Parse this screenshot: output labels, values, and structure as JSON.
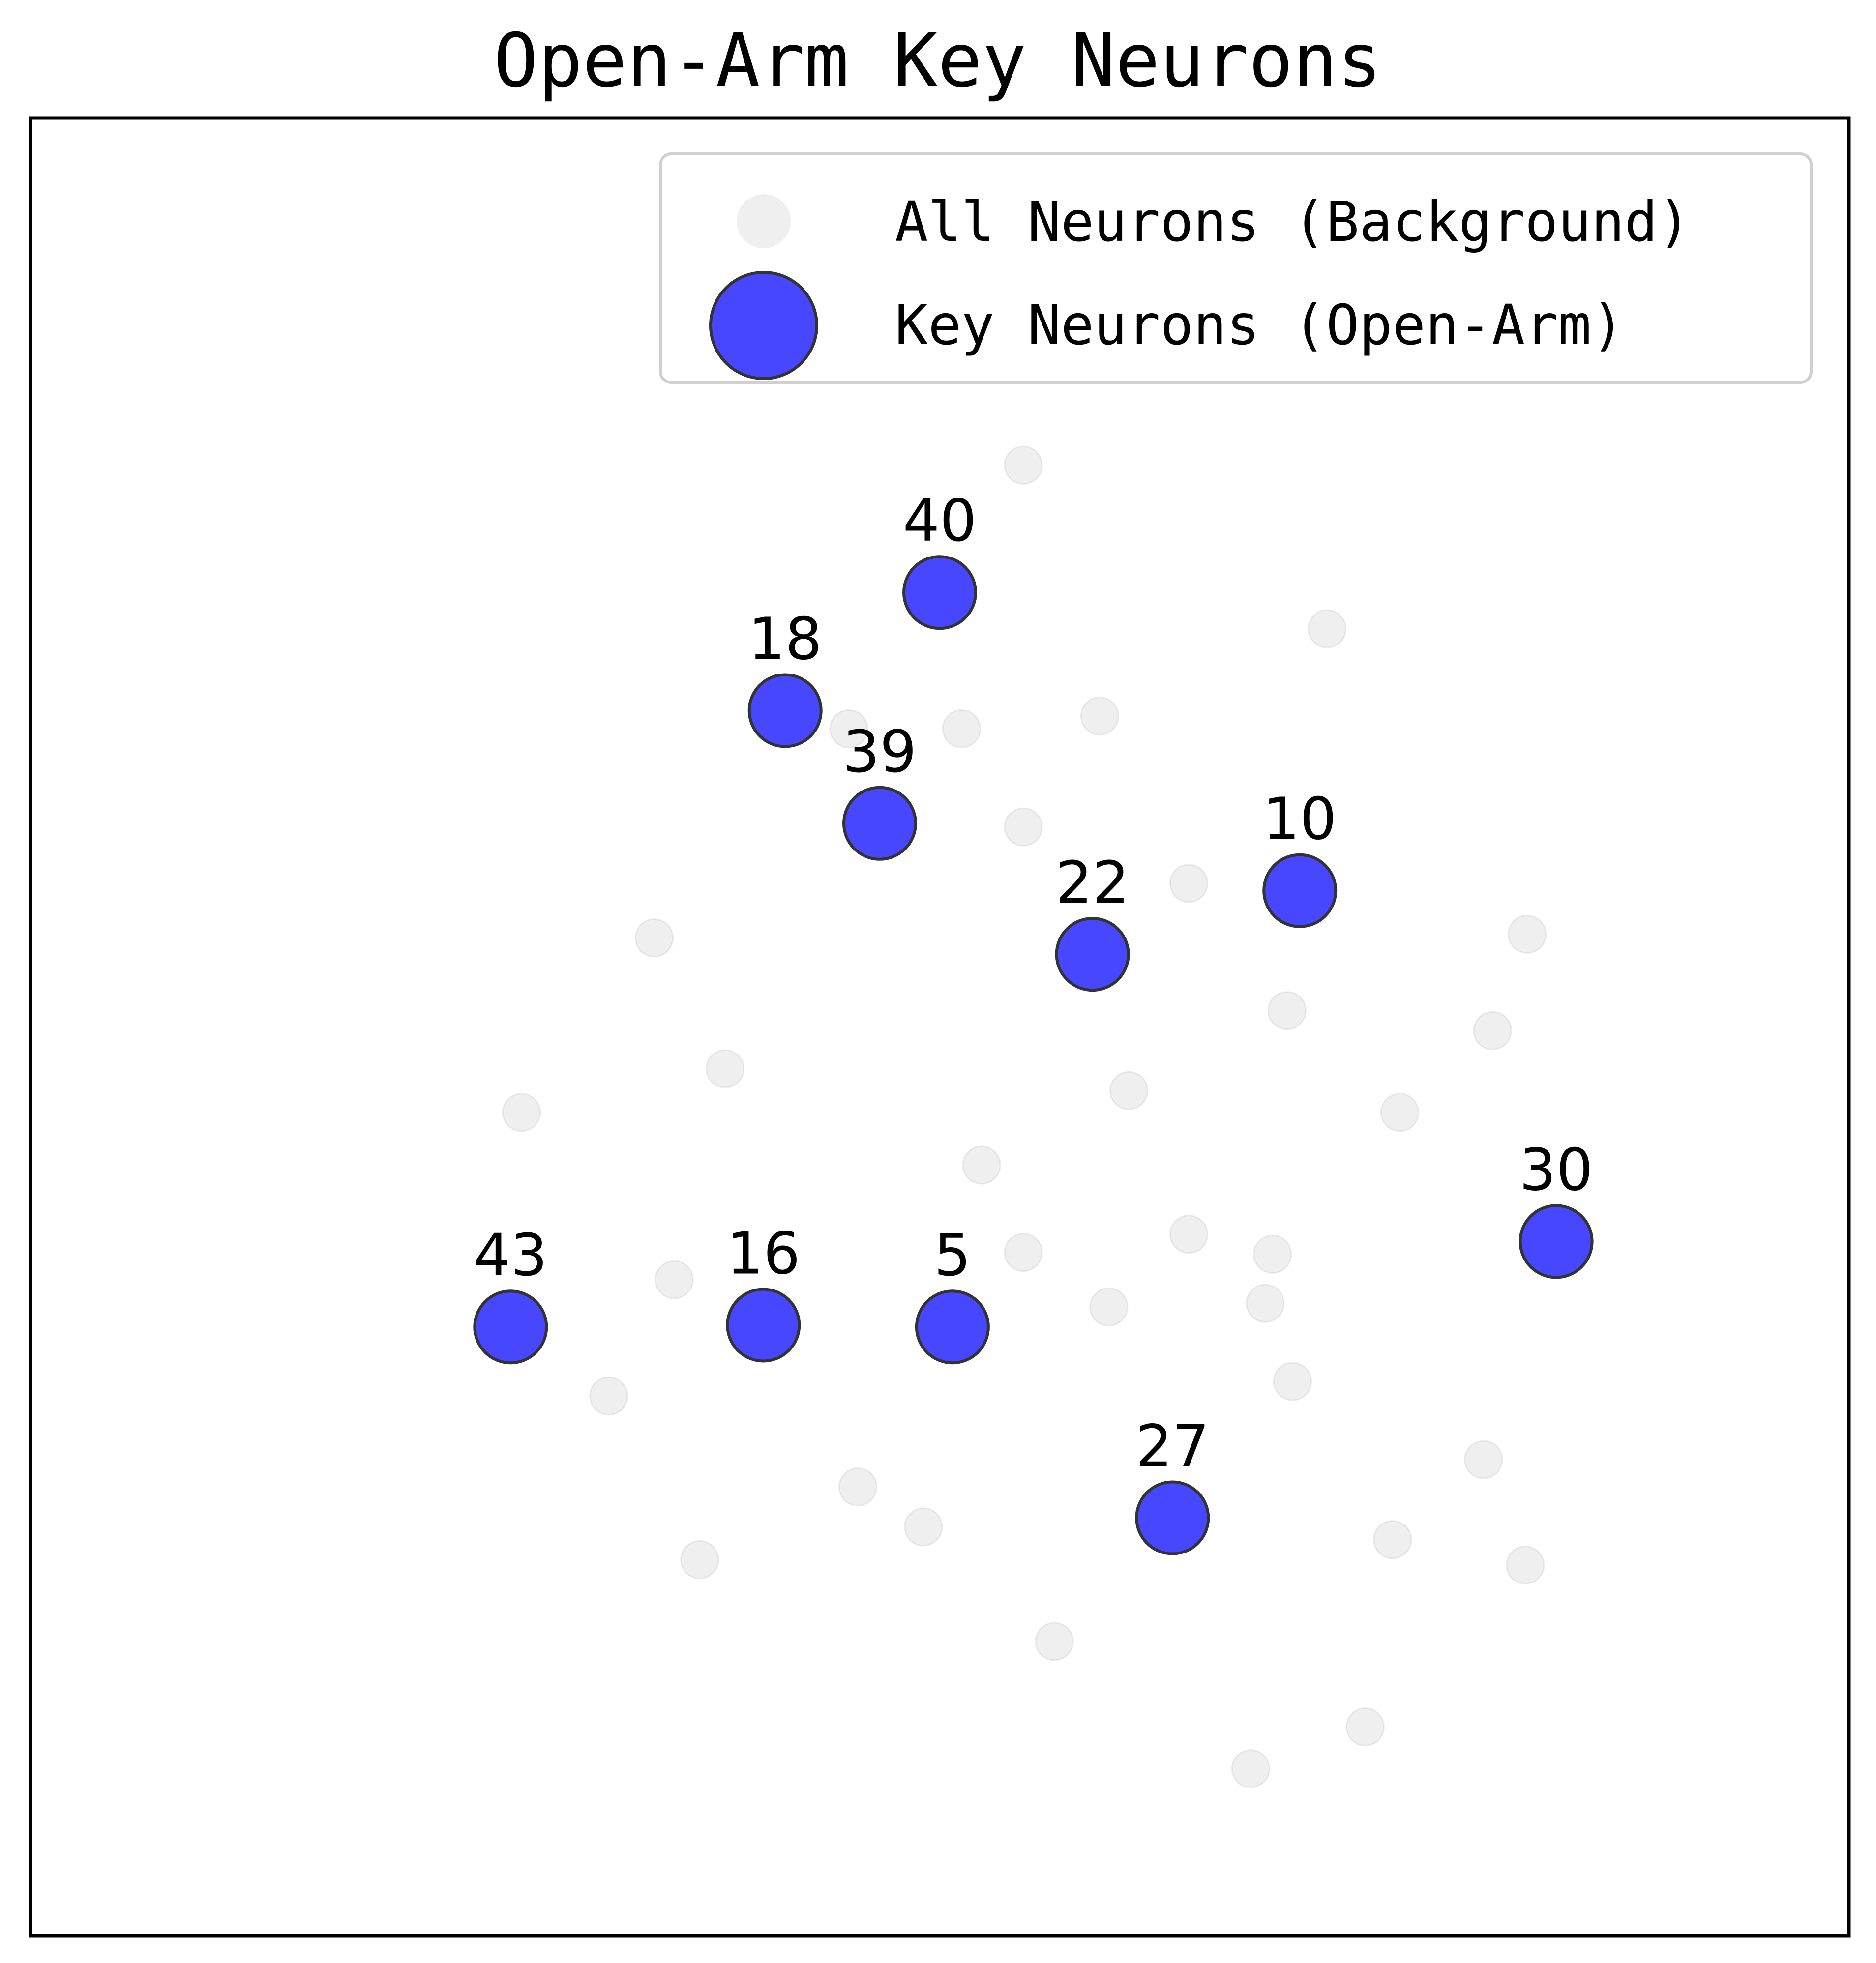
{
  "chart_data": {
    "type": "scatter",
    "title": "Open-Arm Key Neurons",
    "xlabel": "",
    "ylabel": "",
    "xlim": [
      0,
      100
    ],
    "ylim": [
      0,
      100
    ],
    "axes_visible": false,
    "grid": false,
    "legend_position": "top-right",
    "series": [
      {
        "name": "All Neurons (Background)",
        "color": "#e0e0e0",
        "role": "background",
        "points": [
          {
            "x": 54.6,
            "y": 80.9
          },
          {
            "x": 71.3,
            "y": 71.9
          },
          {
            "x": 45.0,
            "y": 66.4
          },
          {
            "x": 51.2,
            "y": 66.4
          },
          {
            "x": 58.8,
            "y": 67.1
          },
          {
            "x": 54.6,
            "y": 61.0
          },
          {
            "x": 63.7,
            "y": 57.9
          },
          {
            "x": 34.3,
            "y": 54.9
          },
          {
            "x": 82.3,
            "y": 55.1
          },
          {
            "x": 69.1,
            "y": 50.9
          },
          {
            "x": 80.4,
            "y": 49.8
          },
          {
            "x": 38.2,
            "y": 47.7
          },
          {
            "x": 60.4,
            "y": 46.5
          },
          {
            "x": 27.0,
            "y": 45.3
          },
          {
            "x": 75.3,
            "y": 45.3
          },
          {
            "x": 52.3,
            "y": 42.4
          },
          {
            "x": 63.7,
            "y": 38.6
          },
          {
            "x": 68.3,
            "y": 37.5
          },
          {
            "x": 54.6,
            "y": 37.6
          },
          {
            "x": 35.4,
            "y": 36.1
          },
          {
            "x": 59.3,
            "y": 34.6
          },
          {
            "x": 67.9,
            "y": 34.8
          },
          {
            "x": 31.8,
            "y": 29.7
          },
          {
            "x": 69.4,
            "y": 30.5
          },
          {
            "x": 45.5,
            "y": 24.7
          },
          {
            "x": 79.9,
            "y": 26.2
          },
          {
            "x": 49.1,
            "y": 22.5
          },
          {
            "x": 74.9,
            "y": 21.8
          },
          {
            "x": 36.8,
            "y": 20.7
          },
          {
            "x": 82.2,
            "y": 20.4
          },
          {
            "x": 56.3,
            "y": 16.2
          },
          {
            "x": 73.4,
            "y": 11.5
          },
          {
            "x": 67.1,
            "y": 9.2
          }
        ]
      },
      {
        "name": "Key Neurons (Open-Arm)",
        "color": "#3333ff",
        "role": "highlight",
        "points": [
          {
            "label": "40",
            "x": 50.0,
            "y": 73.9
          },
          {
            "label": "18",
            "x": 41.5,
            "y": 67.4
          },
          {
            "label": "39",
            "x": 46.7,
            "y": 61.2
          },
          {
            "label": "10",
            "x": 69.8,
            "y": 57.5
          },
          {
            "label": "22",
            "x": 58.4,
            "y": 54.0
          },
          {
            "label": "30",
            "x": 83.9,
            "y": 38.2
          },
          {
            "label": "43",
            "x": 26.4,
            "y": 33.5
          },
          {
            "label": "16",
            "x": 40.3,
            "y": 33.6
          },
          {
            "label": "5",
            "x": 50.7,
            "y": 33.5
          },
          {
            "label": "27",
            "x": 62.8,
            "y": 23.0
          }
        ]
      }
    ]
  }
}
